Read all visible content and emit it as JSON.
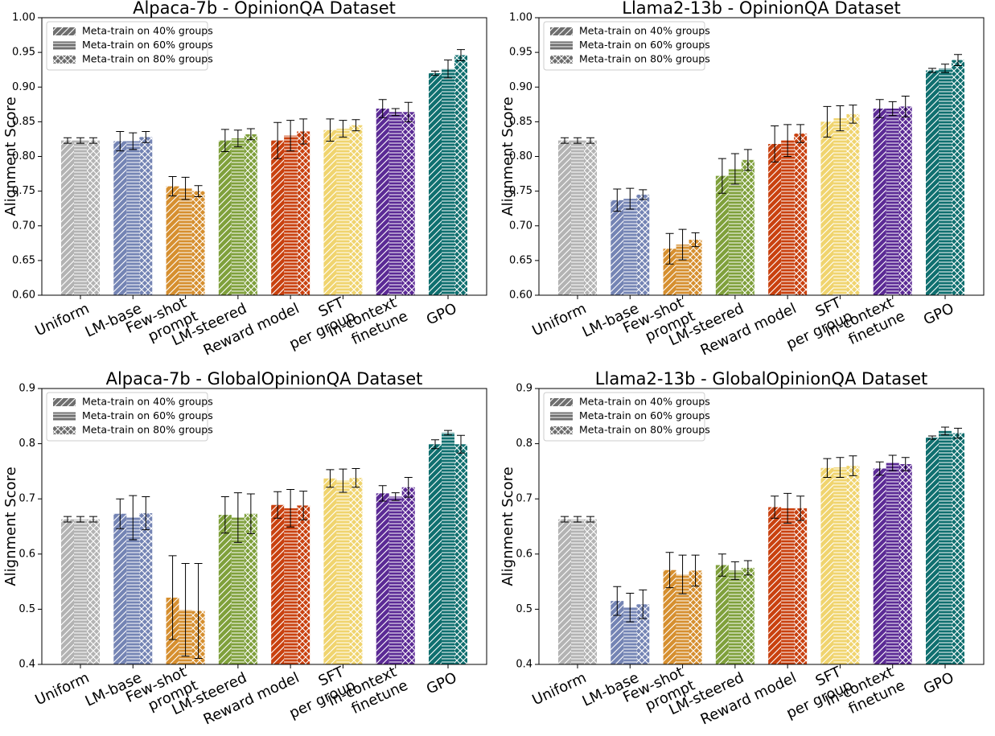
{
  "chart_data": [
    {
      "type": "bar",
      "title": "Alpaca-7b - OpinionQA Dataset",
      "y_label": "Alignment Score",
      "categories": [
        "Uniform",
        "LM-base",
        "Few-shot\nprompt",
        "LM-steered",
        "Reward model",
        "SFT\nper group",
        "In-context\nfinetune",
        "GPO"
      ],
      "colors": [
        "#b3b3b3",
        "#7484b4",
        "#d68f2f",
        "#7fa03b",
        "#c9410f",
        "#f0d46e",
        "#5b2a95",
        "#0f6f6f"
      ],
      "series": [
        {
          "name": "Meta-train on 40% groups",
          "hatch": "/",
          "values": [
            0.823,
            0.822,
            0.757,
            0.823,
            0.823,
            0.838,
            0.869,
            0.92
          ],
          "errors": [
            0.004,
            0.014,
            0.014,
            0.016,
            0.026,
            0.016,
            0.013,
            0.003
          ]
        },
        {
          "name": "Meta-train on 60% groups",
          "hatch": "-",
          "values": [
            0.823,
            0.822,
            0.754,
            0.826,
            0.83,
            0.84,
            0.864,
            0.926
          ],
          "errors": [
            0.004,
            0.012,
            0.016,
            0.012,
            0.022,
            0.012,
            0.005,
            0.013
          ]
        },
        {
          "name": "Meta-train on 80% groups",
          "hatch": "x",
          "values": [
            0.823,
            0.828,
            0.75,
            0.832,
            0.836,
            0.845,
            0.864,
            0.946
          ],
          "errors": [
            0.004,
            0.008,
            0.008,
            0.008,
            0.018,
            0.008,
            0.014,
            0.008
          ]
        }
      ],
      "ylim": [
        0.6,
        1.0
      ],
      "yticks": [
        {
          "value": 0.6,
          "label": "0.60"
        },
        {
          "value": 0.65,
          "label": "0.65"
        },
        {
          "value": 0.7,
          "label": "0.70"
        },
        {
          "value": 0.75,
          "label": "0.75"
        },
        {
          "value": 0.8,
          "label": "0.80"
        },
        {
          "value": 0.85,
          "label": "0.85"
        },
        {
          "value": 0.9,
          "label": "0.90"
        },
        {
          "value": 0.95,
          "label": "0.95"
        },
        {
          "value": 1.0,
          "label": "1.00"
        }
      ],
      "legend": "upper left"
    },
    {
      "type": "bar",
      "title": "Llama2-13b - OpinionQA Dataset",
      "y_label": "Alignment Score",
      "categories": [
        "Uniform",
        "LM-base",
        "Few-shot\nprompt",
        "LM-steered",
        "Reward model",
        "SFT\nper group",
        "In-context\nfinetune",
        "GPO"
      ],
      "colors": [
        "#b3b3b3",
        "#7484b4",
        "#d68f2f",
        "#7fa03b",
        "#c9410f",
        "#f0d46e",
        "#5b2a95",
        "#0f6f6f"
      ],
      "series": [
        {
          "name": "Meta-train on 40% groups",
          "hatch": "/",
          "values": [
            0.823,
            0.737,
            0.667,
            0.772,
            0.818,
            0.85,
            0.869,
            0.924
          ],
          "errors": [
            0.004,
            0.016,
            0.022,
            0.025,
            0.026,
            0.022,
            0.013,
            0.003
          ]
        },
        {
          "name": "Meta-train on 60% groups",
          "hatch": "-",
          "values": [
            0.823,
            0.739,
            0.673,
            0.782,
            0.823,
            0.855,
            0.869,
            0.927
          ],
          "errors": [
            0.004,
            0.015,
            0.022,
            0.022,
            0.023,
            0.018,
            0.01,
            0.006
          ]
        },
        {
          "name": "Meta-train on 80% groups",
          "hatch": "x",
          "values": [
            0.823,
            0.745,
            0.68,
            0.795,
            0.833,
            0.861,
            0.872,
            0.939
          ],
          "errors": [
            0.004,
            0.007,
            0.01,
            0.015,
            0.013,
            0.013,
            0.015,
            0.008
          ]
        }
      ],
      "ylim": [
        0.6,
        1.0
      ],
      "yticks": [
        {
          "value": 0.6,
          "label": "0.60"
        },
        {
          "value": 0.65,
          "label": "0.65"
        },
        {
          "value": 0.7,
          "label": "0.70"
        },
        {
          "value": 0.75,
          "label": "0.75"
        },
        {
          "value": 0.8,
          "label": "0.80"
        },
        {
          "value": 0.85,
          "label": "0.85"
        },
        {
          "value": 0.9,
          "label": "0.90"
        },
        {
          "value": 0.95,
          "label": "0.95"
        },
        {
          "value": 1.0,
          "label": "1.00"
        }
      ],
      "legend": "upper left"
    },
    {
      "type": "bar",
      "title": "Alpaca-7b - GlobalOpinionQA Dataset",
      "y_label": "Alignment Score",
      "categories": [
        "Uniform",
        "LM-base",
        "Few-shot\nprompt",
        "LM-steered",
        "Reward model",
        "SFT\nper group",
        "In-context\nfinetune",
        "GPO"
      ],
      "colors": [
        "#b3b3b3",
        "#7484b4",
        "#d68f2f",
        "#7fa03b",
        "#c9410f",
        "#f0d46e",
        "#5b2a95",
        "#0f6f6f"
      ],
      "series": [
        {
          "name": "Meta-train on 40% groups",
          "hatch": "/",
          "values": [
            0.663,
            0.673,
            0.521,
            0.671,
            0.689,
            0.737,
            0.71,
            0.799
          ],
          "errors": [
            0.005,
            0.027,
            0.076,
            0.033,
            0.024,
            0.016,
            0.014,
            0.008
          ]
        },
        {
          "name": "Meta-train on 60% groups",
          "hatch": "-",
          "values": [
            0.663,
            0.666,
            0.499,
            0.666,
            0.683,
            0.733,
            0.704,
            0.82
          ],
          "errors": [
            0.005,
            0.04,
            0.084,
            0.045,
            0.034,
            0.021,
            0.007,
            0.004
          ]
        },
        {
          "name": "Meta-train on 80% groups",
          "hatch": "x",
          "values": [
            0.663,
            0.674,
            0.497,
            0.673,
            0.688,
            0.738,
            0.721,
            0.799
          ],
          "errors": [
            0.005,
            0.03,
            0.086,
            0.036,
            0.026,
            0.017,
            0.018,
            0.016
          ]
        }
      ],
      "ylim": [
        0.4,
        0.9
      ],
      "yticks": [
        0.4,
        0.5,
        0.6,
        0.7,
        0.8,
        0.9
      ],
      "legend": "upper left"
    },
    {
      "type": "bar",
      "title": "Llama2-13b - GlobalOpinionQA Dataset",
      "y_label": "Alignment Score",
      "categories": [
        "Uniform",
        "LM-base",
        "Few-shot\nprompt",
        "LM-steered",
        "Reward model",
        "SFT\nper group",
        "In-context\nfinetune",
        "GPO"
      ],
      "colors": [
        "#b3b3b3",
        "#7484b4",
        "#d68f2f",
        "#7fa03b",
        "#c9410f",
        "#f0d46e",
        "#5b2a95",
        "#0f6f6f"
      ],
      "series": [
        {
          "name": "Meta-train on 40% groups",
          "hatch": "/",
          "values": [
            0.663,
            0.515,
            0.571,
            0.58,
            0.685,
            0.756,
            0.755,
            0.811
          ],
          "errors": [
            0.005,
            0.026,
            0.032,
            0.02,
            0.02,
            0.017,
            0.012,
            0.003
          ]
        },
        {
          "name": "Meta-train on 60% groups",
          "hatch": "-",
          "values": [
            0.663,
            0.503,
            0.563,
            0.57,
            0.683,
            0.757,
            0.765,
            0.823
          ],
          "errors": [
            0.005,
            0.026,
            0.035,
            0.016,
            0.027,
            0.018,
            0.014,
            0.007
          ]
        },
        {
          "name": "Meta-train on 80% groups",
          "hatch": "x",
          "values": [
            0.663,
            0.509,
            0.57,
            0.575,
            0.683,
            0.76,
            0.763,
            0.819
          ],
          "errors": [
            0.005,
            0.026,
            0.028,
            0.013,
            0.022,
            0.018,
            0.012,
            0.009
          ]
        }
      ],
      "ylim": [
        0.4,
        0.9
      ],
      "yticks": [
        0.4,
        0.5,
        0.6,
        0.7,
        0.8,
        0.9
      ],
      "legend": "upper left"
    }
  ]
}
